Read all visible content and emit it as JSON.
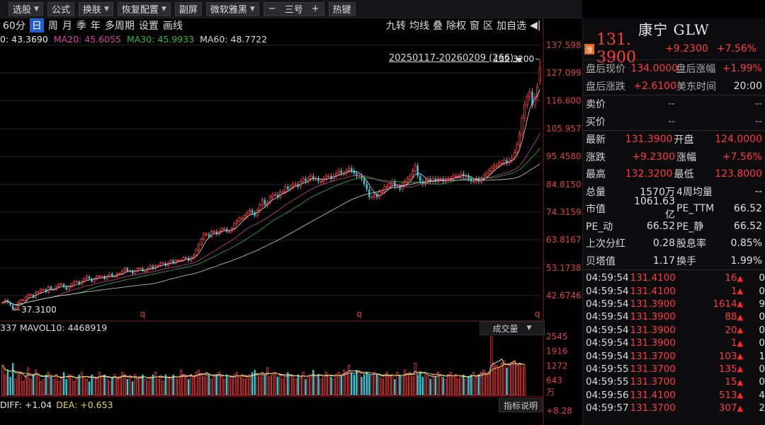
{
  "toolbar": {
    "items": [
      {
        "label": "选股",
        "dd": true
      },
      {
        "label": "公式",
        "dd": false
      },
      {
        "label": "换肤",
        "dd": true
      },
      {
        "label": "恢复配置",
        "dd": true
      },
      {
        "label": "副屏",
        "dd": false
      },
      {
        "label": "微软雅黑",
        "dd": true
      }
    ],
    "zoom_minus": "−",
    "zoom_label": "三号",
    "zoom_plus": "+",
    "hot": "热键"
  },
  "timeframes": [
    "60分",
    "日",
    "周",
    "月",
    "季",
    "年",
    "多周期",
    "设置",
    "画线"
  ],
  "active_timeframe": "日",
  "right_tools": [
    "九转",
    "均线",
    "叠",
    "除权",
    "窗",
    "区",
    "加自选"
  ],
  "arrow_icon": "◀|",
  "ma_legend": [
    {
      "text": "0: 43.3690",
      "color": "#e8e8e8"
    },
    {
      "text": "MA20: 45.6055",
      "color": "#d845a0"
    },
    {
      "text": "MA30: 45.9933",
      "color": "#2fbf3f"
    },
    {
      "text": "MA60: 48.7722",
      "color": "#d8d8d8"
    }
  ],
  "range_label": "20250117-20260209 (266)",
  "lock_icon": "lock-icon",
  "vol_legend": "337  MAVOL10: 4468919",
  "vol_selector": "成交量",
  "macd_legend": [
    {
      "text": "DIFF: +1.04",
      "color": "#e8e8e8"
    },
    {
      "text": "DEA: +0.653",
      "color": "#e8d84a"
    }
  ],
  "index_button": "指标说明",
  "stock": {
    "name": "康宁 GLW",
    "tag": "涨",
    "price": "131. 3900",
    "change": "+9.2300",
    "pct": "+7.56%"
  },
  "after": [
    {
      "l1": "盘后现价",
      "v1": "134.0000",
      "l2": "盘后涨幅",
      "v2": "+1.99%"
    },
    {
      "l1": "盘后涨跌",
      "v1": "+2.6100",
      "l2": "美东时间",
      "v2": "20:00"
    }
  ],
  "bidask": [
    {
      "l": "卖价",
      "a": "--",
      "b": "--"
    },
    {
      "l": "买价",
      "a": "--",
      "b": "--"
    }
  ],
  "stats": [
    {
      "l1": "最新",
      "v1": "131.3900",
      "c1": "red",
      "l2": "开盘",
      "v2": "124.0000",
      "c2": "red"
    },
    {
      "l1": "涨跌",
      "v1": "+9.2300",
      "c1": "red",
      "l2": "涨幅",
      "v2": "+7.56%",
      "c2": "red"
    },
    {
      "l1": "最高",
      "v1": "132.3200",
      "c1": "red",
      "l2": "最低",
      "v2": "123.8000",
      "c2": "red"
    },
    {
      "l1": "总量",
      "v1": "1570万",
      "c1": "w",
      "l2": "4周均量",
      "v2": "--",
      "c2": "w"
    },
    {
      "l1": "市值",
      "v1": "1061.63亿",
      "c1": "w",
      "l2": "PE_TTM",
      "v2": "66.52",
      "c2": "w"
    },
    {
      "l1": "PE_动",
      "v1": "66.52",
      "c1": "w",
      "l2": "PE_静",
      "v2": "66.52",
      "c2": "w"
    },
    {
      "l1": "上次分红",
      "v1": "0.28",
      "c1": "w",
      "l2": "股息率",
      "v2": "0.85%",
      "c2": "w"
    },
    {
      "l1": "贝塔值",
      "v1": "1.17",
      "c1": "w",
      "l2": "换手",
      "v2": "1.99%",
      "c2": "w"
    }
  ],
  "ticks": [
    {
      "t": "04:59:54",
      "p": "131.4100",
      "v": "16",
      "n": "0"
    },
    {
      "t": "04:59:54",
      "p": "131.4100",
      "v": "1",
      "n": "0"
    },
    {
      "t": "04:59:54",
      "p": "131.3900",
      "v": "1614",
      "n": "9"
    },
    {
      "t": "04:59:54",
      "p": "131.3900",
      "v": "88",
      "n": "0"
    },
    {
      "t": "04:59:54",
      "p": "131.3900",
      "v": "20",
      "n": "0"
    },
    {
      "t": "04:59:54",
      "p": "131.3900",
      "v": "1",
      "n": "0"
    },
    {
      "t": "04:59:54",
      "p": "131.3700",
      "v": "103",
      "n": "1"
    },
    {
      "t": "04:59:55",
      "p": "131.3700",
      "v": "135",
      "n": "0"
    },
    {
      "t": "04:59:55",
      "p": "131.3700",
      "v": "15",
      "n": "0"
    },
    {
      "t": "04:59:56",
      "p": "131.4100",
      "v": "513",
      "n": "4"
    },
    {
      "t": "04:59:57",
      "p": "131.3700",
      "v": "307",
      "n": "2"
    }
  ],
  "chart_data": {
    "type": "candlestick",
    "price_axis_labels": [
      "137.598",
      "127.099",
      "116.600",
      "105.957",
      "95.4580",
      "84.8150",
      "74.3159",
      "63.8167",
      "53.1738",
      "42.6746"
    ],
    "ylim": [
      37.31,
      137.598
    ],
    "price_ticks": [
      137.598,
      127.099,
      116.6,
      105.957,
      95.458,
      84.815,
      74.3159,
      63.8167,
      53.1738,
      42.6746
    ],
    "max_label": "132.3200",
    "min_label": "37.3100",
    "max_value": 132.32,
    "min_value": 37.31,
    "q_markers": [
      "q",
      "q",
      "q"
    ],
    "q_marker_index": [
      55,
      140,
      210
    ],
    "close_series": [
      40,
      41,
      40,
      39,
      37.3,
      38,
      40,
      41,
      41,
      42,
      43,
      43,
      42,
      44,
      44,
      45,
      45,
      44,
      46,
      45,
      45,
      46,
      47,
      47,
      46,
      45,
      46,
      47,
      48,
      48,
      47,
      48,
      49,
      50,
      49,
      48,
      49,
      50,
      50,
      50,
      49,
      50,
      51,
      50,
      50,
      51,
      51,
      52,
      53,
      52,
      52,
      51,
      52,
      53,
      53,
      52,
      52,
      53,
      54,
      53,
      54,
      54,
      55,
      55,
      54,
      55,
      56,
      55,
      56,
      56,
      56,
      57,
      57,
      56,
      57,
      58,
      60,
      62,
      64,
      66,
      66,
      65,
      67,
      67,
      66,
      67,
      68,
      68,
      67,
      67,
      68,
      70,
      71,
      72,
      72,
      73,
      74,
      75,
      74,
      73,
      75,
      77,
      79,
      77,
      78,
      80,
      81,
      81,
      80,
      82,
      82,
      84,
      83,
      84,
      85,
      85,
      84,
      86,
      87,
      86,
      87,
      88,
      87,
      87,
      86,
      86,
      87,
      88,
      88,
      87,
      88,
      89,
      90,
      89,
      89,
      90,
      91,
      90,
      89,
      88,
      88,
      87,
      85,
      83,
      80,
      80,
      81,
      80,
      82,
      82,
      84,
      84,
      85,
      86,
      84,
      84,
      83,
      85,
      86,
      87,
      88,
      90,
      92,
      88,
      86,
      85,
      86,
      87,
      86,
      87,
      86,
      87,
      87,
      86,
      87,
      87,
      87,
      88,
      88,
      88,
      89,
      88,
      88,
      87,
      86,
      86,
      87,
      86,
      87,
      88,
      89,
      90,
      91,
      92,
      92,
      93,
      93,
      94,
      93,
      94,
      95,
      97,
      100,
      104,
      110,
      115,
      118,
      120,
      115,
      118,
      122,
      129
    ],
    "volume_axis_labels": [
      "2545",
      "1916",
      "1272",
      "643"
    ],
    "volume_ticks": [
      2545,
      1916,
      1272,
      643
    ],
    "volume_unit": "万",
    "volume_series": [
      1300,
      900,
      1100,
      800,
      1400,
      700,
      900,
      1000,
      600,
      800,
      1200,
      700,
      900,
      1100,
      800,
      600,
      700,
      900,
      1000,
      800,
      700,
      900,
      600,
      800,
      1000,
      700,
      900,
      800,
      600,
      700,
      900,
      1000,
      800,
      700,
      600,
      900,
      800,
      700,
      1000,
      800,
      900,
      700,
      600,
      800,
      900,
      700,
      800,
      1000,
      900,
      700,
      800,
      600,
      900,
      700,
      800,
      900,
      700,
      600,
      800,
      900,
      1000,
      700,
      800,
      600,
      900,
      800,
      700,
      900,
      800,
      700,
      1100,
      900,
      800,
      700,
      900,
      800,
      1000,
      1100,
      900,
      800,
      1000,
      900,
      700,
      800,
      900,
      1000,
      800,
      700,
      900,
      800,
      700,
      900,
      1000,
      800,
      900,
      700,
      800,
      900,
      1000,
      1100,
      900,
      800,
      1000,
      900,
      1200,
      800,
      900,
      1000,
      800,
      900,
      700,
      800,
      1000,
      900,
      800,
      700,
      900,
      800,
      1000,
      700,
      800,
      900,
      1100,
      800,
      900,
      700,
      800,
      1000,
      900,
      800,
      700,
      900,
      1000,
      900,
      1100,
      1000,
      1300,
      1000,
      900,
      1100,
      1000,
      800,
      900,
      1000,
      900,
      800,
      1000,
      900,
      800,
      700,
      900,
      1000,
      800,
      900,
      700,
      1000,
      900,
      800,
      1100,
      900,
      1000,
      800,
      1400,
      900,
      1000,
      800,
      900,
      800,
      700,
      900,
      800,
      1000,
      900,
      800,
      700,
      900,
      1000,
      800,
      900,
      700,
      800,
      900,
      700,
      800,
      900,
      1000,
      800,
      900,
      1000,
      1100,
      900,
      1000,
      2545,
      1400,
      1300,
      1200,
      1400,
      1500,
      1200,
      1300,
      1400,
      1500,
      1300,
      1400,
      1200,
      1300
    ],
    "macd_axis_labels": [
      "+8.28"
    ]
  }
}
